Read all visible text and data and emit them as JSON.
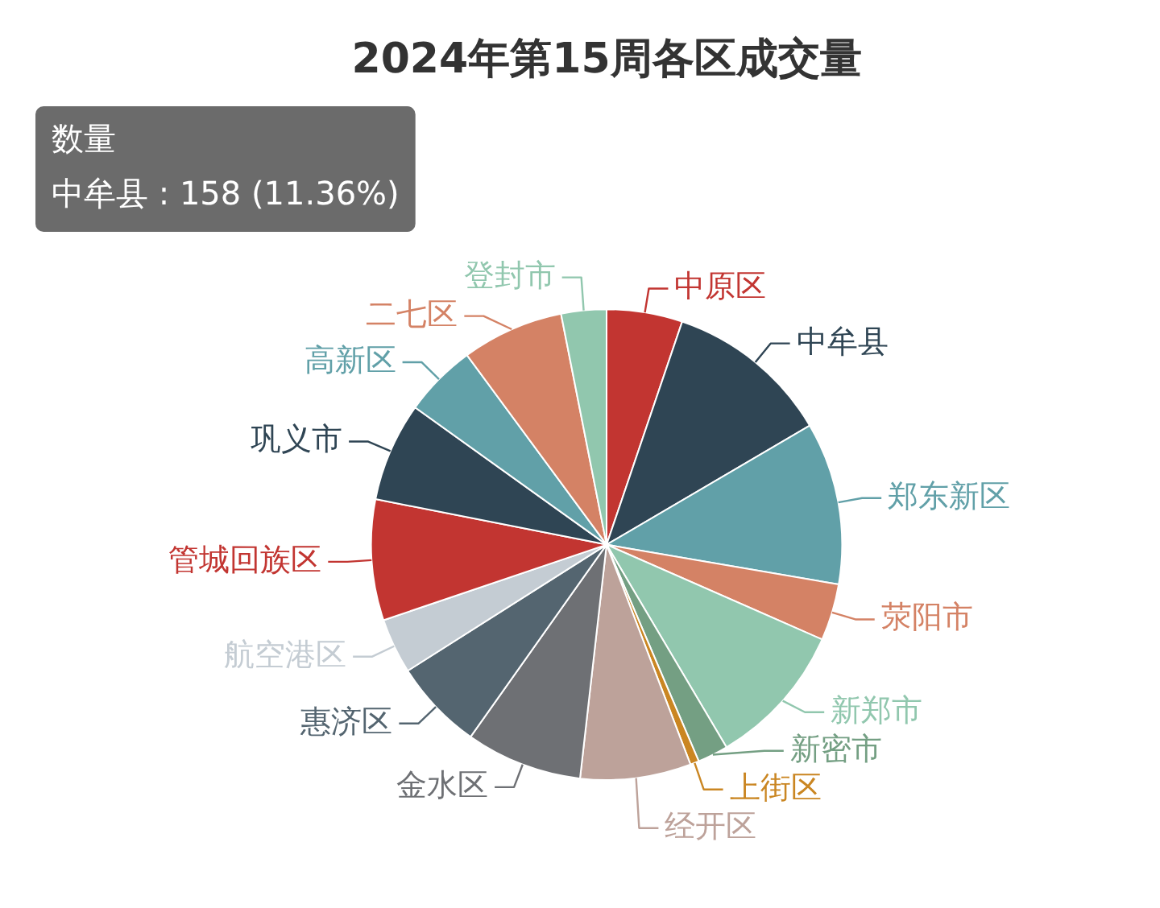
{
  "chart_data": {
    "type": "pie",
    "title": "2024年第15周各区成交量",
    "categories": [
      "中原区",
      "中牟县",
      "郑东新区",
      "荥阳市",
      "新郑市",
      "新密市",
      "上街区",
      "经开区",
      "金水区",
      "惠济区",
      "航空港区",
      "管城回族区",
      "巩义市",
      "高新区",
      "二七区",
      "登封市"
    ],
    "values": [
      5.2,
      11.36,
      11.14,
      3.9,
      9.9,
      2.1,
      0.6,
      7.6,
      8.0,
      6.2,
      3.8,
      8.3,
      6.8,
      5.0,
      7.0,
      3.1
    ],
    "colors": [
      "#c23531",
      "#2f4554",
      "#61a0a8",
      "#d48265",
      "#91c7ae",
      "#749f83",
      "#ca8622",
      "#bda29a",
      "#6e7074",
      "#546570",
      "#c4ccd3",
      "#c23531",
      "#2f4554",
      "#61a0a8",
      "#d48265",
      "#91c7ae"
    ],
    "annotations": [
      "数量",
      "中牟县 : 158 (11.36%)"
    ]
  }
}
